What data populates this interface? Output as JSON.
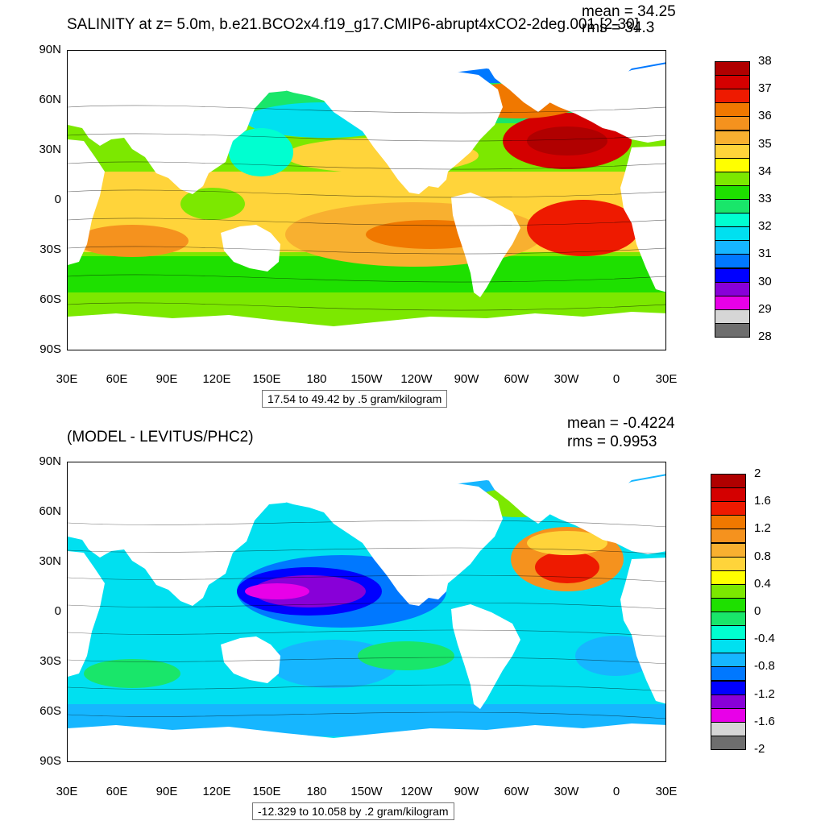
{
  "top": {
    "title": "SALINITY at z=   5.0m, b.e21.BCO2x4.f19_g17.CMIP6-abrupt4xCO2-2deg.001 [2-30]",
    "stats": [
      "mean = 34.25",
      "rms = 34.3"
    ],
    "range_text": "17.54 to 49.42 by .5 gram/kilogram",
    "lat_labels": [
      "90N",
      "60N",
      "30N",
      "0",
      "30S",
      "60S",
      "90S"
    ],
    "lon_labels": [
      "30E",
      "60E",
      "90E",
      "120E",
      "150E",
      "180",
      "150W",
      "120W",
      "90W",
      "60W",
      "30W",
      "0",
      "30E"
    ],
    "colorbar": {
      "labels": [
        "38",
        "37",
        "36",
        "35",
        "34",
        "33",
        "32",
        "31",
        "30",
        "29",
        "28"
      ],
      "colors": [
        "#b00000",
        "#d40000",
        "#ee1a00",
        "#f07800",
        "#f5921e",
        "#f8b030",
        "#ffd43a",
        "#ffff00",
        "#7ce800",
        "#1ee000",
        "#19e66a",
        "#00ffd0",
        "#00e0f0",
        "#16b6ff",
        "#0078ff",
        "#0000ff",
        "#8800d8",
        "#e800e8",
        "#d6d6d6",
        "#6e6e6e"
      ]
    }
  },
  "bottom": {
    "title": "(MODEL - LEVITUS/PHC2)",
    "stats": [
      "mean = -0.4224",
      "rms = 0.9953"
    ],
    "range_text": "-12.329 to 10.058 by .2 gram/kilogram",
    "lat_labels": [
      "90N",
      "60N",
      "30N",
      "0",
      "30S",
      "60S",
      "90S"
    ],
    "lon_labels": [
      "30E",
      "60E",
      "90E",
      "120E",
      "150E",
      "180",
      "150W",
      "120W",
      "90W",
      "60W",
      "30W",
      "0",
      "30E"
    ],
    "colorbar": {
      "labels": [
        "2",
        "1.6",
        "1.2",
        "0.8",
        "0.4",
        "0",
        "-0.4",
        "-0.8",
        "-1.2",
        "-1.6",
        "-2"
      ],
      "colors": [
        "#b00000",
        "#d40000",
        "#ee1a00",
        "#f07800",
        "#f5921e",
        "#f8b030",
        "#ffd43a",
        "#ffff00",
        "#7ce800",
        "#1ee000",
        "#19e66a",
        "#00ffd0",
        "#00e0f0",
        "#16b6ff",
        "#0078ff",
        "#0000ff",
        "#8800d8",
        "#e800e8",
        "#d6d6d6",
        "#6e6e6e"
      ]
    }
  }
}
